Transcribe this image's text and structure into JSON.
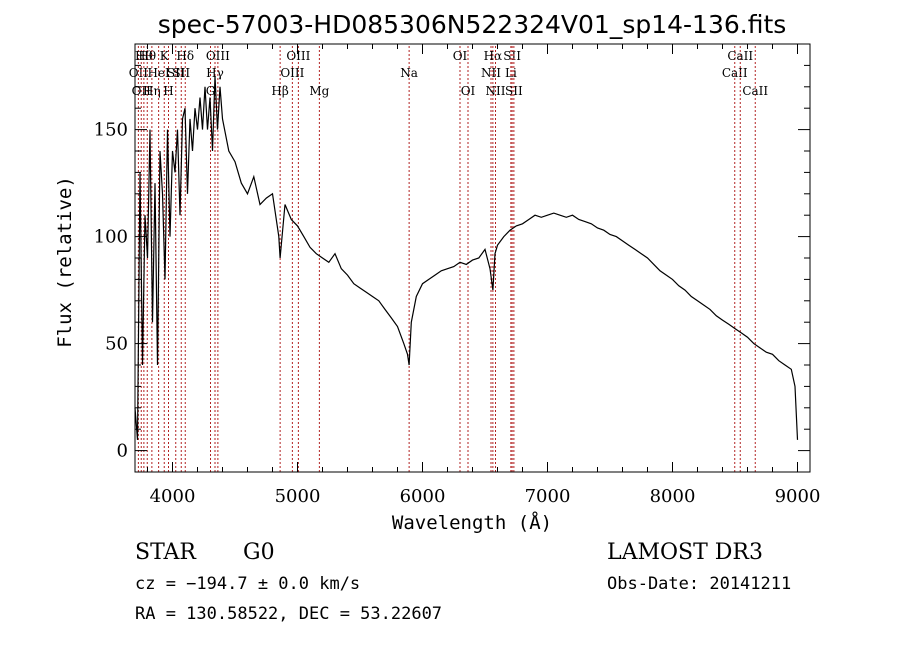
{
  "chart_data": {
    "type": "line",
    "title": "spec-57003-HD085306N522324V01_sp14-136.fits",
    "xlabel": "Wavelength (Å)",
    "ylabel": "Flux (relative)",
    "xlim": [
      3700,
      9100
    ],
    "ylim": [
      -10,
      190
    ],
    "xticks": [
      4000,
      5000,
      6000,
      7000,
      8000,
      9000
    ],
    "yticks": [
      0,
      50,
      100,
      150
    ],
    "series": [
      {
        "name": "flux",
        "x": [
          3700,
          3720,
          3740,
          3760,
          3780,
          3800,
          3820,
          3840,
          3860,
          3880,
          3900,
          3920,
          3940,
          3960,
          3980,
          4000,
          4020,
          4040,
          4060,
          4080,
          4100,
          4120,
          4140,
          4160,
          4180,
          4200,
          4220,
          4240,
          4260,
          4280,
          4300,
          4320,
          4340,
          4360,
          4380,
          4400,
          4450,
          4500,
          4550,
          4600,
          4650,
          4700,
          4750,
          4800,
          4850,
          4861,
          4900,
          4950,
          5000,
          5050,
          5100,
          5150,
          5200,
          5250,
          5300,
          5350,
          5400,
          5450,
          5500,
          5550,
          5600,
          5650,
          5700,
          5750,
          5800,
          5850,
          5880,
          5893,
          5910,
          5950,
          6000,
          6050,
          6100,
          6150,
          6200,
          6250,
          6300,
          6350,
          6400,
          6450,
          6500,
          6540,
          6563,
          6580,
          6600,
          6650,
          6700,
          6750,
          6800,
          6850,
          6900,
          6950,
          7000,
          7050,
          7100,
          7150,
          7200,
          7250,
          7300,
          7350,
          7400,
          7450,
          7500,
          7550,
          7600,
          7650,
          7700,
          7750,
          7800,
          7850,
          7900,
          7950,
          8000,
          8050,
          8100,
          8150,
          8200,
          8250,
          8300,
          8350,
          8400,
          8450,
          8500,
          8550,
          8600,
          8650,
          8700,
          8750,
          8800,
          8850,
          8900,
          8950,
          8980,
          9000
        ],
        "values": [
          20,
          5,
          130,
          40,
          110,
          90,
          150,
          60,
          125,
          40,
          140,
          120,
          80,
          150,
          100,
          140,
          130,
          150,
          110,
          155,
          160,
          120,
          155,
          140,
          160,
          150,
          165,
          150,
          170,
          150,
          165,
          140,
          175,
          150,
          170,
          155,
          140,
          135,
          125,
          120,
          128,
          115,
          118,
          120,
          100,
          90,
          115,
          108,
          105,
          100,
          95,
          92,
          90,
          88,
          92,
          85,
          82,
          78,
          76,
          74,
          72,
          70,
          66,
          62,
          58,
          50,
          45,
          40,
          60,
          72,
          78,
          80,
          82,
          84,
          85,
          86,
          88,
          87,
          89,
          90,
          94,
          85,
          75,
          92,
          96,
          100,
          103,
          105,
          106,
          108,
          110,
          109,
          110,
          111,
          110,
          109,
          110,
          108,
          107,
          106,
          104,
          103,
          101,
          100,
          98,
          96,
          94,
          92,
          90,
          87,
          84,
          82,
          80,
          77,
          75,
          72,
          70,
          68,
          66,
          63,
          61,
          59,
          57,
          55,
          53,
          50,
          48,
          46,
          45,
          42,
          40,
          38,
          30,
          5
        ]
      }
    ],
    "lines": [
      {
        "w": 3727,
        "label": "OII",
        "row": 2
      },
      {
        "w": 3750,
        "label": "OII",
        "row": 3
      },
      {
        "w": 3771,
        "label": "Hθ",
        "row": 1
      },
      {
        "w": 3798,
        "label": "Hθ",
        "row": 1
      },
      {
        "w": 3835,
        "label": "Hη",
        "row": 3
      },
      {
        "w": 3889,
        "label": "HeI",
        "row": 2
      },
      {
        "w": 3934,
        "label": "K",
        "row": 1
      },
      {
        "w": 3968,
        "label": "H",
        "row": 3
      },
      {
        "w": 4026,
        "label": "SII",
        "row": 2
      },
      {
        "w": 4070,
        "label": "SII",
        "row": 2
      },
      {
        "w": 4102,
        "label": "Hδ",
        "row": 1
      },
      {
        "w": 4304,
        "label": "G",
        "row": 3
      },
      {
        "w": 4340,
        "label": "Hγ",
        "row": 2
      },
      {
        "w": 4363,
        "label": "OIII",
        "row": 1
      },
      {
        "w": 4861,
        "label": "Hβ",
        "row": 3
      },
      {
        "w": 4959,
        "label": "OIII",
        "row": 2
      },
      {
        "w": 5007,
        "label": "OIII",
        "row": 1
      },
      {
        "w": 5175,
        "label": "Mg",
        "row": 3
      },
      {
        "w": 5893,
        "label": "Na",
        "row": 2
      },
      {
        "w": 6300,
        "label": "OI",
        "row": 1
      },
      {
        "w": 6364,
        "label": "OI",
        "row": 3
      },
      {
        "w": 6548,
        "label": "NII",
        "row": 2
      },
      {
        "w": 6563,
        "label": "Hα",
        "row": 1
      },
      {
        "w": 6584,
        "label": "NII",
        "row": 3
      },
      {
        "w": 6707,
        "label": "Li",
        "row": 2
      },
      {
        "w": 6717,
        "label": "SII",
        "row": 1
      },
      {
        "w": 6731,
        "label": "SII",
        "row": 3
      },
      {
        "w": 8498,
        "label": "CaII",
        "row": 2
      },
      {
        "w": 8542,
        "label": "CaII",
        "row": 1
      },
      {
        "w": 8662,
        "label": "CaII",
        "row": 3
      }
    ],
    "line_color": "#b22222"
  },
  "footer": {
    "object_class": "STAR",
    "subclass": "G0",
    "survey": "LAMOST DR3",
    "cz": "cz = −194.7 ± 0.0 km/s",
    "obs_date": "Obs-Date: 20141211",
    "coords": "RA = 130.58522, DEC =  53.22607"
  }
}
